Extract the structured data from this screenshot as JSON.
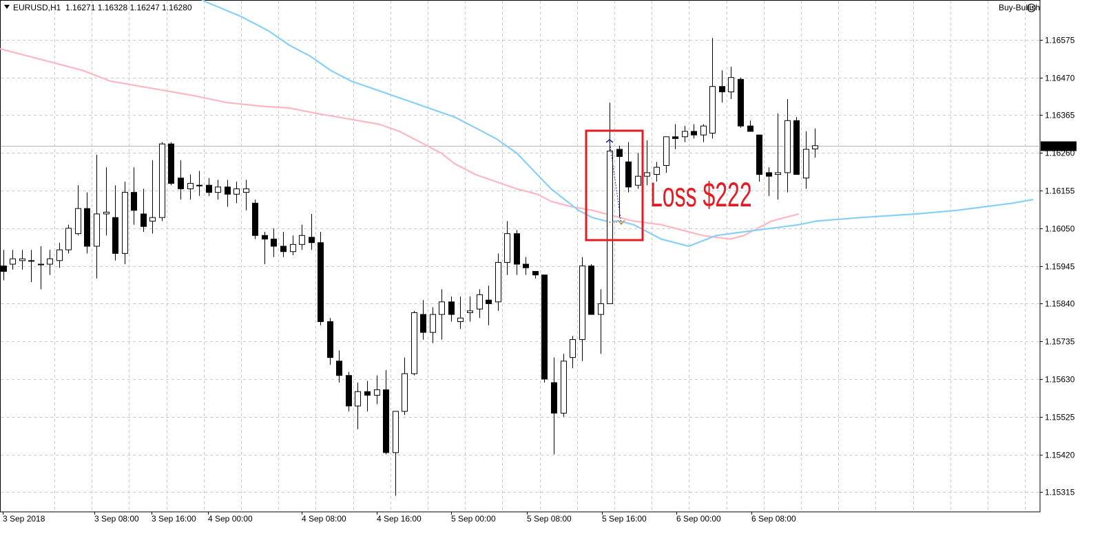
{
  "header": {
    "symbol": "EURUSD,H1",
    "ohlc": "1.16271 1.16328 1.16247 1.16280",
    "ea_name": "Buy-Bullish"
  },
  "colors": {
    "bull_body": "#ffffff",
    "bear_body": "#000000",
    "ma_fast": "#ffb6c1",
    "ma_slow": "#87cefa",
    "highlight_box": "#e31b23",
    "annotation_text": "#e31b23",
    "grid": "#c8c8c8"
  },
  "icons": {
    "ea_status": "smiley-icon"
  },
  "annotation": {
    "text": "Loss $222"
  },
  "chart_data": {
    "type": "candlestick",
    "title": "",
    "xlabel": "",
    "ylabel": "",
    "grid": true,
    "ylim": [
      1.1526,
      1.16686
    ],
    "ytick_labels": [
      "1.16575",
      "1.16470",
      "1.16365",
      "1.16260",
      "1.16155",
      "1.16050",
      "1.15945",
      "1.15840",
      "1.15735",
      "1.15630",
      "1.15525",
      "1.15420",
      "1.15315"
    ],
    "current_price": "1.16280",
    "xtick_labels": [
      "3 Sep 2018",
      "3 Sep 08:00",
      "3 Sep 16:00",
      "4 Sep 00:00",
      "4 Sep 08:00",
      "4 Sep 16:00",
      "5 Sep 00:00",
      "5 Sep 08:00",
      "5 Sep 16:00",
      "6 Sep 00:00",
      "6 Sep 08:00"
    ],
    "candles": [
      {
        "o": 1.15945,
        "h": 1.1599,
        "l": 1.15905,
        "c": 1.1593
      },
      {
        "o": 1.1595,
        "h": 1.1599,
        "l": 1.15935,
        "c": 1.15965
      },
      {
        "o": 1.1596,
        "h": 1.1599,
        "l": 1.15935,
        "c": 1.15965
      },
      {
        "o": 1.1596,
        "h": 1.1599,
        "l": 1.159,
        "c": 1.1596
      },
      {
        "o": 1.1595,
        "h": 1.16,
        "l": 1.1588,
        "c": 1.1595
      },
      {
        "o": 1.1595,
        "h": 1.1599,
        "l": 1.1592,
        "c": 1.15965
      },
      {
        "o": 1.1596,
        "h": 1.1601,
        "l": 1.1594,
        "c": 1.1599
      },
      {
        "o": 1.1599,
        "h": 1.1606,
        "l": 1.1598,
        "c": 1.1605
      },
      {
        "o": 1.16035,
        "h": 1.1617,
        "l": 1.1603,
        "c": 1.16105
      },
      {
        "o": 1.16105,
        "h": 1.1615,
        "l": 1.1598,
        "c": 1.16
      },
      {
        "o": 1.16,
        "h": 1.16255,
        "l": 1.1591,
        "c": 1.1609
      },
      {
        "o": 1.1609,
        "h": 1.1622,
        "l": 1.1603,
        "c": 1.16095
      },
      {
        "o": 1.1608,
        "h": 1.1617,
        "l": 1.1596,
        "c": 1.1598
      },
      {
        "o": 1.1598,
        "h": 1.1618,
        "l": 1.1595,
        "c": 1.1615
      },
      {
        "o": 1.1615,
        "h": 1.1622,
        "l": 1.1606,
        "c": 1.161
      },
      {
        "o": 1.1609,
        "h": 1.1616,
        "l": 1.1604,
        "c": 1.16055
      },
      {
        "o": 1.1607,
        "h": 1.1624,
        "l": 1.16035,
        "c": 1.1608
      },
      {
        "o": 1.1608,
        "h": 1.1629,
        "l": 1.1607,
        "c": 1.16285
      },
      {
        "o": 1.16285,
        "h": 1.1629,
        "l": 1.1617,
        "c": 1.16175
      },
      {
        "o": 1.1619,
        "h": 1.1624,
        "l": 1.1613,
        "c": 1.1616
      },
      {
        "o": 1.1616,
        "h": 1.162,
        "l": 1.1613,
        "c": 1.16175
      },
      {
        "o": 1.1617,
        "h": 1.1621,
        "l": 1.1614,
        "c": 1.1617
      },
      {
        "o": 1.1617,
        "h": 1.1619,
        "l": 1.1614,
        "c": 1.1615
      },
      {
        "o": 1.1615,
        "h": 1.16185,
        "l": 1.1613,
        "c": 1.16165
      },
      {
        "o": 1.16165,
        "h": 1.16185,
        "l": 1.1611,
        "c": 1.16145
      },
      {
        "o": 1.16145,
        "h": 1.1618,
        "l": 1.1612,
        "c": 1.1616
      },
      {
        "o": 1.1615,
        "h": 1.16185,
        "l": 1.161,
        "c": 1.1616
      },
      {
        "o": 1.1612,
        "h": 1.1613,
        "l": 1.1602,
        "c": 1.1603
      },
      {
        "o": 1.1603,
        "h": 1.1604,
        "l": 1.1595,
        "c": 1.1602
      },
      {
        "o": 1.1602,
        "h": 1.1605,
        "l": 1.1597,
        "c": 1.16
      },
      {
        "o": 1.16,
        "h": 1.1604,
        "l": 1.1597,
        "c": 1.15985
      },
      {
        "o": 1.15985,
        "h": 1.1603,
        "l": 1.15975,
        "c": 1.16005
      },
      {
        "o": 1.16005,
        "h": 1.1606,
        "l": 1.1599,
        "c": 1.1603
      },
      {
        "o": 1.16025,
        "h": 1.1609,
        "l": 1.1599,
        "c": 1.1601
      },
      {
        "o": 1.1601,
        "h": 1.1604,
        "l": 1.1578,
        "c": 1.1579
      },
      {
        "o": 1.1579,
        "h": 1.158,
        "l": 1.1567,
        "c": 1.1569
      },
      {
        "o": 1.1568,
        "h": 1.1571,
        "l": 1.1562,
        "c": 1.1564
      },
      {
        "o": 1.1564,
        "h": 1.1565,
        "l": 1.1554,
        "c": 1.15555
      },
      {
        "o": 1.15555,
        "h": 1.1562,
        "l": 1.1549,
        "c": 1.15595
      },
      {
        "o": 1.15595,
        "h": 1.15625,
        "l": 1.1554,
        "c": 1.15585
      },
      {
        "o": 1.15585,
        "h": 1.1564,
        "l": 1.1556,
        "c": 1.156
      },
      {
        "o": 1.156,
        "h": 1.15655,
        "l": 1.1542,
        "c": 1.15425
      },
      {
        "o": 1.15425,
        "h": 1.1554,
        "l": 1.15305,
        "c": 1.1554
      },
      {
        "o": 1.1554,
        "h": 1.1569,
        "l": 1.1553,
        "c": 1.15645
      },
      {
        "o": 1.15645,
        "h": 1.1582,
        "l": 1.1564,
        "c": 1.15815
      },
      {
        "o": 1.1581,
        "h": 1.1585,
        "l": 1.1574,
        "c": 1.1576
      },
      {
        "o": 1.1576,
        "h": 1.1583,
        "l": 1.1573,
        "c": 1.1581
      },
      {
        "o": 1.1581,
        "h": 1.1588,
        "l": 1.1574,
        "c": 1.15845
      },
      {
        "o": 1.15845,
        "h": 1.1586,
        "l": 1.1579,
        "c": 1.1581
      },
      {
        "o": 1.1579,
        "h": 1.1586,
        "l": 1.1577,
        "c": 1.158
      },
      {
        "o": 1.15815,
        "h": 1.1586,
        "l": 1.1579,
        "c": 1.1582
      },
      {
        "o": 1.15825,
        "h": 1.1588,
        "l": 1.158,
        "c": 1.15865
      },
      {
        "o": 1.1585,
        "h": 1.1589,
        "l": 1.1578,
        "c": 1.1584
      },
      {
        "o": 1.15845,
        "h": 1.1598,
        "l": 1.1582,
        "c": 1.15955
      },
      {
        "o": 1.15955,
        "h": 1.1607,
        "l": 1.1592,
        "c": 1.16035
      },
      {
        "o": 1.16035,
        "h": 1.16045,
        "l": 1.1592,
        "c": 1.1595
      },
      {
        "o": 1.1595,
        "h": 1.1597,
        "l": 1.1592,
        "c": 1.1594
      },
      {
        "o": 1.1593,
        "h": 1.1593,
        "l": 1.1591,
        "c": 1.1592
      },
      {
        "o": 1.1592,
        "h": 1.1592,
        "l": 1.1562,
        "c": 1.1563
      },
      {
        "o": 1.1562,
        "h": 1.1569,
        "l": 1.1542,
        "c": 1.15535
      },
      {
        "o": 1.15535,
        "h": 1.157,
        "l": 1.15525,
        "c": 1.1568
      },
      {
        "o": 1.1569,
        "h": 1.1575,
        "l": 1.1566,
        "c": 1.1574
      },
      {
        "o": 1.1574,
        "h": 1.1597,
        "l": 1.1568,
        "c": 1.15945
      },
      {
        "o": 1.15945,
        "h": 1.1595,
        "l": 1.1582,
        "c": 1.1581
      },
      {
        "o": 1.1581,
        "h": 1.1588,
        "l": 1.157,
        "c": 1.1584
      },
      {
        "o": 1.1584,
        "h": 1.164,
        "l": 1.1584,
        "c": 1.16265
      },
      {
        "o": 1.1627,
        "h": 1.1628,
        "l": 1.1608,
        "c": 1.1625
      },
      {
        "o": 1.16235,
        "h": 1.1629,
        "l": 1.1615,
        "c": 1.16165
      },
      {
        "o": 1.1617,
        "h": 1.1626,
        "l": 1.1616,
        "c": 1.16195
      },
      {
        "o": 1.16195,
        "h": 1.16295,
        "l": 1.1617,
        "c": 1.16205
      },
      {
        "o": 1.162,
        "h": 1.16235,
        "l": 1.1618,
        "c": 1.1622
      },
      {
        "o": 1.16225,
        "h": 1.16305,
        "l": 1.16205,
        "c": 1.16305
      },
      {
        "o": 1.16305,
        "h": 1.1634,
        "l": 1.1627,
        "c": 1.163
      },
      {
        "o": 1.16305,
        "h": 1.16335,
        "l": 1.1629,
        "c": 1.1632
      },
      {
        "o": 1.1632,
        "h": 1.1634,
        "l": 1.163,
        "c": 1.1631
      },
      {
        "o": 1.1631,
        "h": 1.1634,
        "l": 1.1629,
        "c": 1.16335
      },
      {
        "o": 1.16315,
        "h": 1.1658,
        "l": 1.163,
        "c": 1.16445
      },
      {
        "o": 1.16445,
        "h": 1.1649,
        "l": 1.164,
        "c": 1.1643
      },
      {
        "o": 1.1643,
        "h": 1.165,
        "l": 1.1641,
        "c": 1.1647
      },
      {
        "o": 1.16465,
        "h": 1.1647,
        "l": 1.1633,
        "c": 1.16335
      },
      {
        "o": 1.16335,
        "h": 1.1635,
        "l": 1.1632,
        "c": 1.1632
      },
      {
        "o": 1.1631,
        "h": 1.1631,
        "l": 1.1618,
        "c": 1.162
      },
      {
        "o": 1.16205,
        "h": 1.1622,
        "l": 1.1614,
        "c": 1.16195
      },
      {
        "o": 1.162,
        "h": 1.1637,
        "l": 1.1613,
        "c": 1.16205
      },
      {
        "o": 1.16205,
        "h": 1.1641,
        "l": 1.1615,
        "c": 1.1635
      },
      {
        "o": 1.1635,
        "h": 1.1636,
        "l": 1.162,
        "c": 1.162
      },
      {
        "o": 1.1619,
        "h": 1.1632,
        "l": 1.1616,
        "c": 1.1627
      },
      {
        "o": 1.16271,
        "h": 1.16328,
        "l": 1.16247,
        "c": 1.1628
      }
    ],
    "series": [
      {
        "values": [
          1.1655,
          1.1652,
          1.1649,
          1.1646,
          1.1644,
          1.1642,
          1.164,
          1.1639,
          1.16385,
          1.1637,
          1.1636,
          1.1635,
          1.1634,
          1.1632,
          1.163,
          1.1628,
          1.1626,
          1.1623,
          1.162,
          1.1618,
          1.1616,
          1.16145,
          1.16125,
          1.1611,
          1.161,
          1.1609,
          1.1608,
          1.1607,
          1.16065,
          1.1606,
          1.1605,
          1.1604,
          1.1603,
          1.16025,
          1.1602,
          1.1603,
          1.1605,
          1.1607,
          1.1608,
          1.1609,
          1.161,
          1.1611,
          1.16115,
          1.16125,
          1.1613,
          1.16135
        ]
      },
      {
        "values": [
          1.1675,
          1.1668,
          1.1664,
          1.166,
          1.1656,
          1.1653,
          1.1649,
          1.1646,
          1.1644,
          1.1642,
          1.164,
          1.1638,
          1.1636,
          1.1633,
          1.163,
          1.1626,
          1.162,
          1.1616,
          1.1613,
          1.161,
          1.1608,
          1.1607,
          1.1607,
          1.1606,
          1.1604,
          1.1602,
          1.1601,
          1.16,
          1.1603,
          1.1604,
          1.1605,
          1.1606,
          1.1607,
          1.1608,
          1.1609,
          1.161,
          1.1611,
          1.1612,
          1.1613
        ]
      }
    ]
  }
}
